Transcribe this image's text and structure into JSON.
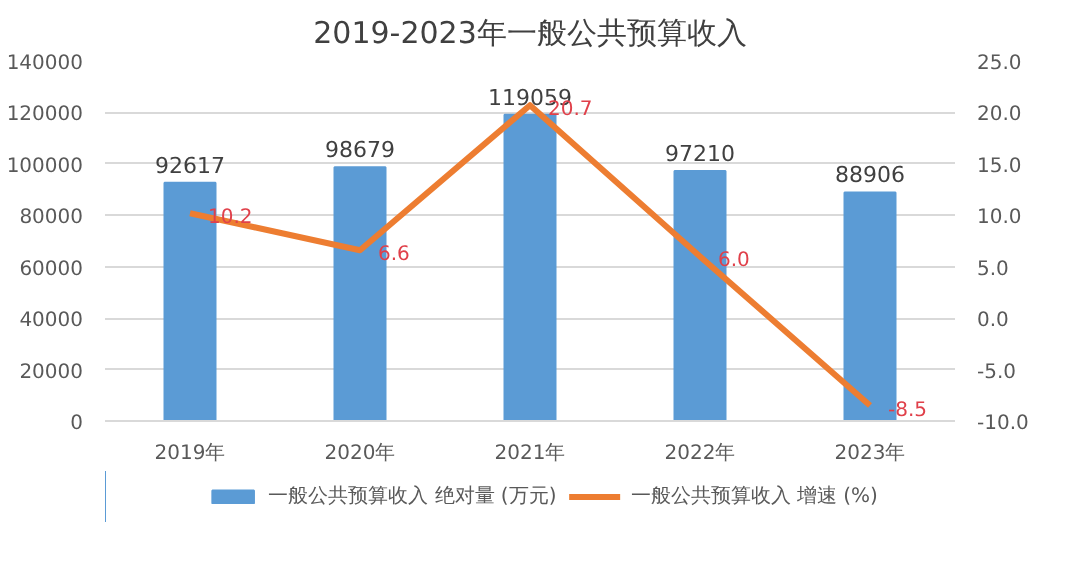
{
  "chart_data": {
    "type": "bar",
    "title": "2019-2023年一般公共预算收入",
    "categories": [
      "2019年",
      "2020年",
      "2021年",
      "2022年",
      "2023年"
    ],
    "series": [
      {
        "name": "一般公共预算收入 绝对量 (万元)",
        "color": "#5b9bd5",
        "values": [
          92617,
          98679,
          119059,
          97210,
          88906
        ],
        "value_labels": [
          "92617",
          "98679",
          "119059",
          "97210",
          "88906"
        ]
      },
      {
        "name": "一般公共预算收入 增速 (%)",
        "type": "line",
        "axis": "y2",
        "color": "#ed7d31",
        "values": [
          10.2,
          6.6,
          20.7,
          6.0,
          -8.5
        ],
        "value_labels": [
          "10.2",
          "6.6",
          "20.7",
          "6.0",
          "-8.5"
        ]
      }
    ],
    "ylim": [
      0,
      140000
    ],
    "yticks": [
      0,
      20000,
      40000,
      60000,
      80000,
      100000,
      120000,
      140000
    ],
    "y2lim": [
      -10,
      25
    ],
    "y2ticks": [
      {
        "value": -10,
        "label": "-10.0"
      },
      {
        "value": -5,
        "label": "-5.0"
      },
      {
        "value": 0,
        "label": "0.0"
      },
      {
        "value": 5,
        "label": "5.0"
      },
      {
        "value": 10,
        "label": "10.0"
      },
      {
        "value": 15,
        "label": "15.0"
      },
      {
        "value": 20,
        "label": "20.0"
      },
      {
        "value": 25,
        "label": "25.0"
      }
    ],
    "grid": "y",
    "legend": "bottom",
    "marker": "none",
    "line_style": "solid"
  }
}
